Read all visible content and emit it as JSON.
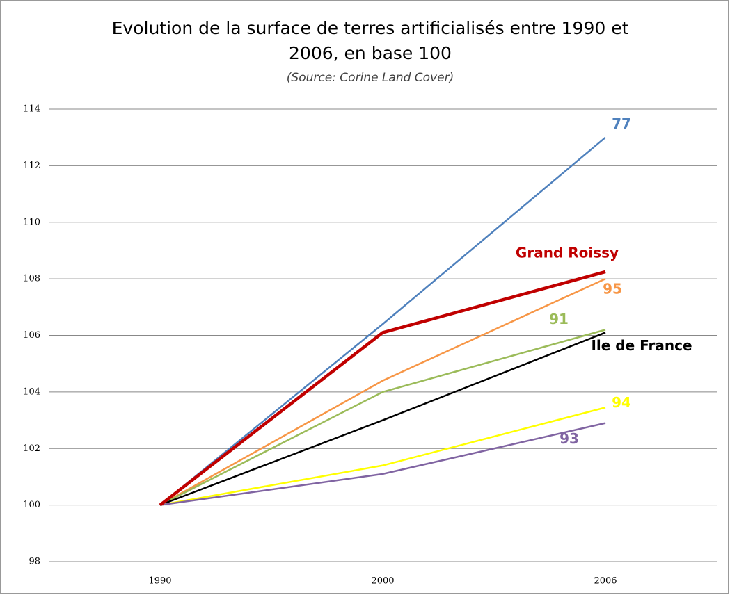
{
  "chart_data": {
    "type": "line",
    "title_lines": [
      "Evolution de la surface de terres artificialisés entre 1990 et",
      "2006, en base 100"
    ],
    "subtitle": "(Source: Corine Land Cover)",
    "categories": [
      "1990",
      "2000",
      "2006"
    ],
    "series": [
      {
        "name": "77",
        "color": "#4f81bd",
        "values": [
          100,
          106.4,
          113.0
        ]
      },
      {
        "name": "95",
        "color": "#f79646",
        "values": [
          100,
          104.4,
          108.0
        ]
      },
      {
        "name": "91",
        "color": "#9bbb59",
        "values": [
          100,
          104.0,
          106.2
        ]
      },
      {
        "name": "Ile de France",
        "color": "#000000",
        "values": [
          100,
          103.0,
          106.1
        ]
      },
      {
        "name": "94",
        "color": "#ffff00",
        "values": [
          100,
          101.4,
          103.45
        ]
      },
      {
        "name": "93",
        "color": "#8064a2",
        "values": [
          100,
          101.1,
          102.9
        ]
      },
      {
        "name": "Grand Roissy",
        "color": "#c00000",
        "values": [
          100,
          106.1,
          108.25
        ]
      }
    ],
    "ylim": [
      98,
      114
    ],
    "yticks": [
      98,
      100,
      102,
      104,
      106,
      108,
      110,
      112,
      114
    ],
    "grid": true
  }
}
